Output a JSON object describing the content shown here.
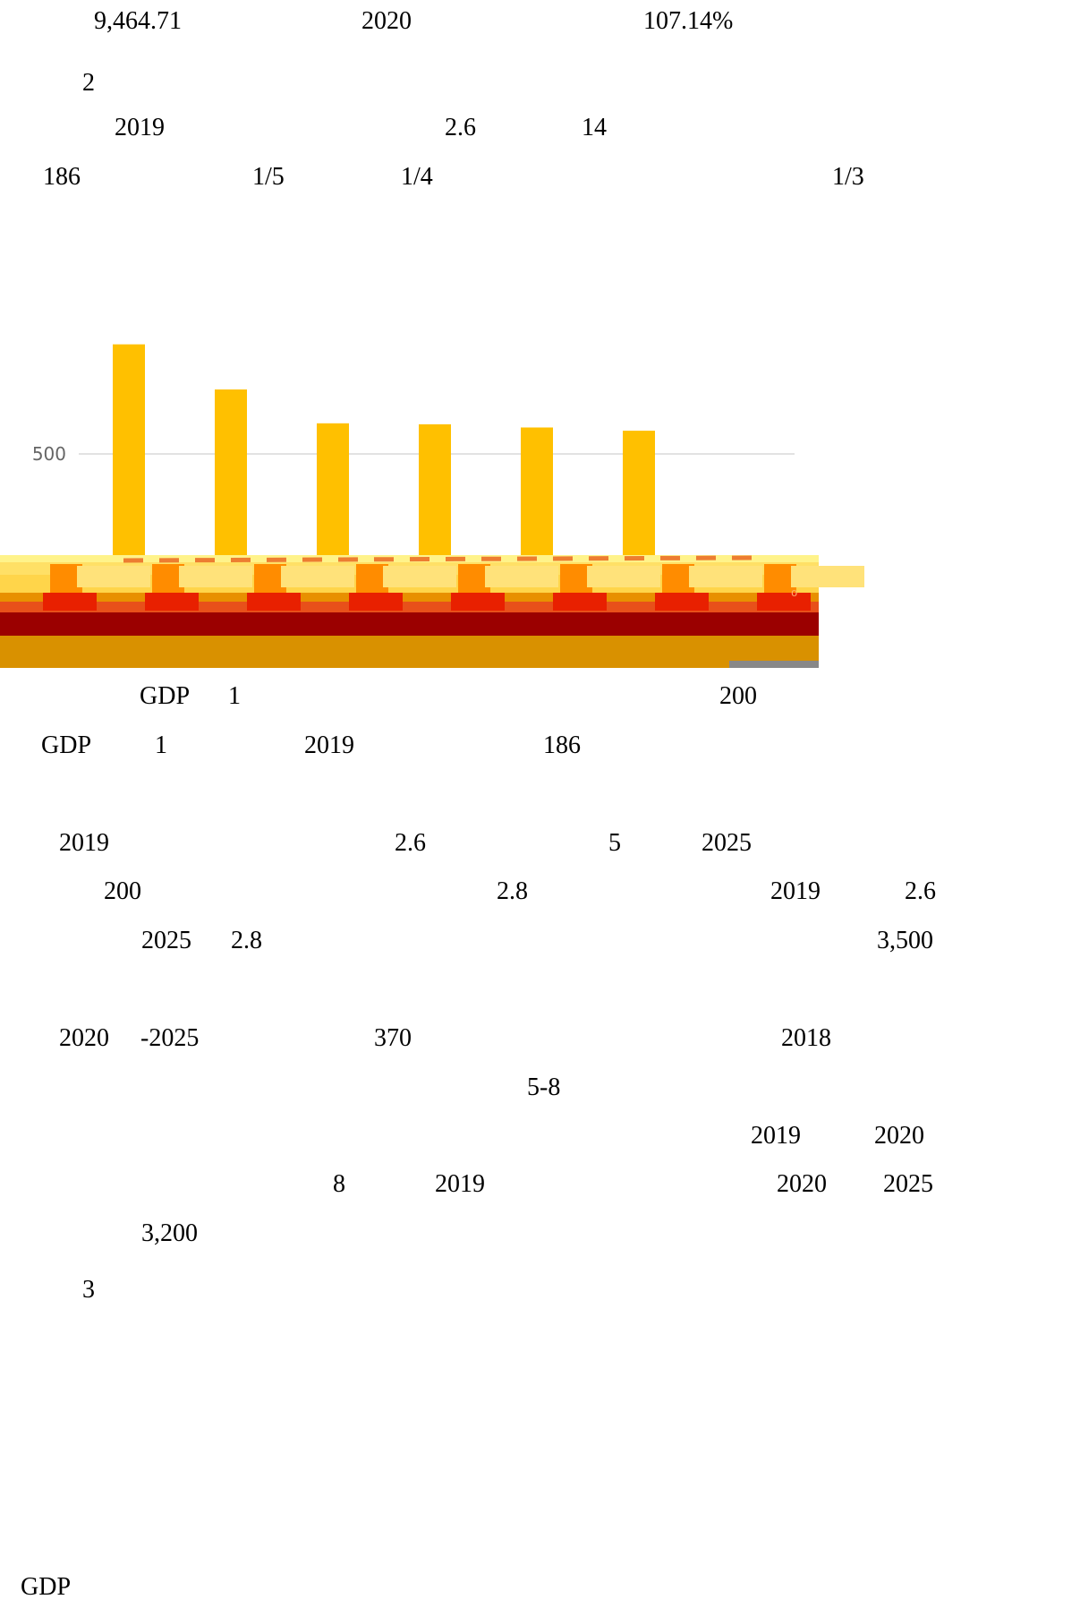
{
  "lines": [
    [
      "9,464.71",
      "2020",
      "107.14%"
    ],
    [
      "2"
    ],
    [
      "2019",
      "2.6",
      "14"
    ],
    [
      "186",
      "1/5",
      "1/4",
      "1/3"
    ],
    [
      "GDP",
      "1",
      "200"
    ],
    [
      "GDP",
      "1",
      "2019",
      "186"
    ],
    [
      "2019",
      "2.6",
      "5",
      "2025"
    ],
    [
      "200",
      "2.8",
      "2019",
      "2.6"
    ],
    [
      "2025",
      "2.8",
      "3,500"
    ],
    [
      "2020",
      "-2025",
      "370",
      "2018"
    ],
    [
      "5-8"
    ],
    [
      "2019",
      "2020"
    ],
    [
      "8",
      "2019",
      "2020",
      "2025"
    ],
    [
      "3,200"
    ],
    [
      "3"
    ],
    [
      "GDP"
    ]
  ],
  "chart_data": {
    "type": "bar",
    "yticks": [
      "1000",
      "500"
    ],
    "ylim": [
      0,
      1000
    ],
    "grid": true,
    "series": [
      {
        "values": [
          840,
          700,
          595,
          592,
          582,
          572
        ]
      }
    ],
    "colors": {
      "bar": "#ffc000",
      "grid": "#d9d9d9",
      "dash": "#ed7d31"
    },
    "legend_glyph": "⁰"
  }
}
